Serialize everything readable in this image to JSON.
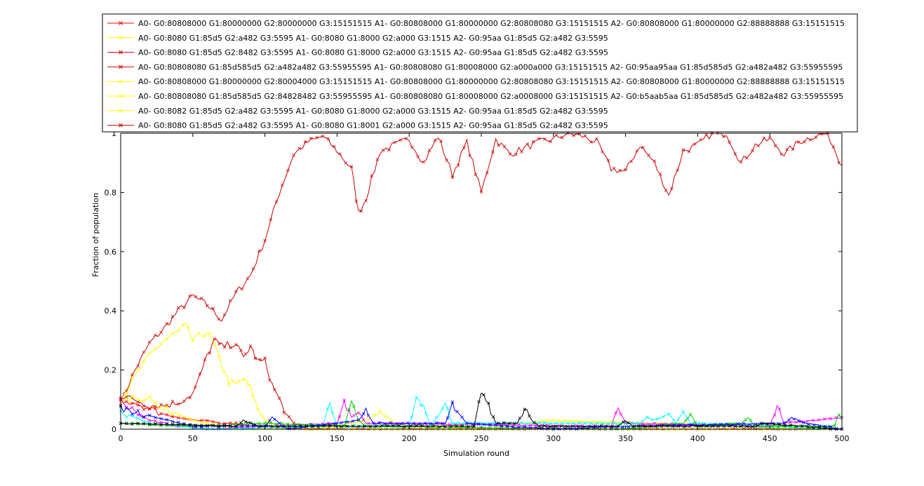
{
  "chart_data": {
    "type": "line",
    "xlabel": "Simulation round",
    "ylabel": "Fraction of population",
    "xlim": [
      0,
      500
    ],
    "ylim": [
      0,
      1
    ],
    "xticks": [
      0,
      50,
      100,
      150,
      200,
      250,
      300,
      350,
      400,
      450,
      500
    ],
    "yticks": [
      0,
      0.2,
      0.4,
      0.6,
      0.8,
      1
    ],
    "xtick_labels": [
      "0",
      "50",
      "100",
      "150",
      "200",
      "250",
      "300",
      "350",
      "400",
      "450",
      "500"
    ],
    "ytick_labels": [
      "0",
      "0.2",
      "0.4",
      "0.6",
      "0.8",
      "1"
    ],
    "grid": false,
    "legend_position": "top",
    "legend": [
      {
        "label": "A0- G0:80808000 G1:80000000 G2:80000000 G3:15151515 A1- G0:80808000 G1:80000000 G2:80808080 G3:15151515 A2- G0:80808000 G1:80000000 G2:88888888 G3:15151515",
        "color": "#ff0000"
      },
      {
        "label": "A0- G0:8080 G1:85d5 G2:a482 G3:5595 A1- G0:8080 G1:8000 G2:a000 G3:1515 A2- G0:95aa G1:85d5 G2:a482 G3:5595",
        "color": "#ffff00"
      },
      {
        "label": "A0- G0:8080 G1:85d5 G2:8482 G3:5595 A1- G0:8080 G1:8000 G2:a000 G3:1515 A2- G0:95aa G1:85d5 G2:a482 G3:5595",
        "color": "#cc0000"
      },
      {
        "label": "A0- G0:80808080 G1:85d585d5 G2:a482a482 G3:55955595 A1- G0:80808080 G1:80008000 G2:a000a000 G3:15151515 A2- G0:95aa95aa G1:85d585d5 G2:a482a482 G3:55955595",
        "color": "#dd0000"
      },
      {
        "label": "A0- G0:80808000 G1:80000000 G2:80004000 G3:15151515 A1- G0:80808000 G1:80000000 G2:80808080 G3:15151515 A2- G0:80808000 G1:80000000 G2:88888888 G3:15151515",
        "color": "#ffff00"
      },
      {
        "label": "A0- G0:80808080 G1:85d585d5 G2:84828482 G3:55955595 A1- G0:80808080 G1:80008000 G2:a0008000 G3:15151515 A2- G0:b5aab5aa G1:85d585d5 G2:a482a482 G3:55955595",
        "color": "#ffff00"
      },
      {
        "label": "A0- G0:8082 G1:85d5 G2:a482 G3:5595 A1- G0:8080 G1:8000 G2:a000 G3:1515 A2- G0:95aa G1:85d5 G2:a482 G3:5595",
        "color": "#ffff00"
      },
      {
        "label": "A0- G0:8080 G1:85d5 G2:a482 G3:5595 A1- G0:8080 G1:8001 G2:a000 G3:1515 A2- G0:95aa G1:85d5 G2:a482 G3:5595",
        "color": "#cc0000"
      }
    ],
    "series": [
      {
        "color": "#cc0000",
        "x": [
          0,
          10,
          20,
          30,
          40,
          50,
          60,
          70,
          80,
          90,
          100,
          110,
          120,
          130,
          140,
          150,
          160,
          165,
          170,
          180,
          190,
          200,
          210,
          220,
          230,
          240,
          250,
          260,
          270,
          280,
          290,
          300,
          310,
          320,
          330,
          340,
          350,
          360,
          370,
          380,
          390,
          400,
          410,
          420,
          430,
          440,
          450,
          460,
          470,
          480,
          490,
          500
        ],
        "values": [
          0.09,
          0.2,
          0.29,
          0.34,
          0.4,
          0.45,
          0.42,
          0.37,
          0.46,
          0.52,
          0.64,
          0.8,
          0.93,
          0.97,
          0.99,
          0.94,
          0.88,
          0.73,
          0.78,
          0.94,
          0.96,
          0.98,
          0.9,
          0.99,
          0.86,
          0.97,
          0.8,
          0.98,
          0.93,
          0.95,
          0.97,
          0.98,
          1.0,
          0.99,
          0.97,
          0.88,
          0.87,
          0.96,
          0.9,
          0.79,
          0.94,
          0.96,
          1.0,
          1.0,
          0.9,
          0.96,
          0.98,
          0.93,
          0.97,
          0.99,
          1.0,
          0.89
        ]
      },
      {
        "color": "#ffff00",
        "x": [
          0,
          10,
          20,
          30,
          40,
          45,
          50,
          60,
          65,
          70,
          75,
          80,
          85,
          90,
          95,
          100,
          105,
          110,
          120,
          130,
          150,
          160,
          170,
          180,
          190,
          200,
          250,
          300,
          500
        ],
        "values": [
          0.1,
          0.18,
          0.25,
          0.3,
          0.33,
          0.35,
          0.3,
          0.33,
          0.28,
          0.22,
          0.16,
          0.15,
          0.17,
          0.14,
          0.07,
          0.03,
          0.02,
          0.01,
          0.0,
          0.0,
          0.01,
          0.02,
          0.03,
          0.06,
          0.02,
          0.01,
          0.0,
          0.03,
          0.0
        ]
      },
      {
        "color": "#cc0000",
        "x": [
          0,
          10,
          20,
          30,
          40,
          50,
          55,
          60,
          65,
          70,
          80,
          85,
          90,
          95,
          100,
          105,
          110,
          115,
          120,
          130,
          150,
          500
        ],
        "values": [
          0.11,
          0.1,
          0.08,
          0.08,
          0.09,
          0.12,
          0.18,
          0.25,
          0.3,
          0.28,
          0.29,
          0.24,
          0.28,
          0.23,
          0.23,
          0.15,
          0.1,
          0.05,
          0.02,
          0.0,
          0.0,
          0.0
        ]
      },
      {
        "color": "#ff0000",
        "x": [
          0,
          10,
          20,
          30,
          40,
          50,
          60,
          70,
          80,
          90,
          100,
          110,
          120,
          500
        ],
        "values": [
          0.1,
          0.09,
          0.07,
          0.05,
          0.04,
          0.03,
          0.03,
          0.02,
          0.02,
          0.01,
          0.01,
          0.01,
          0.0,
          0.0
        ]
      },
      {
        "color": "#ffff00",
        "x": [
          0,
          10,
          20,
          30,
          40,
          50,
          60,
          70,
          80,
          500
        ],
        "values": [
          0.09,
          0.11,
          0.1,
          0.07,
          0.05,
          0.03,
          0.02,
          0.01,
          0.0,
          0.0
        ]
      },
      {
        "color": "#ff00ff",
        "x": [
          0,
          10,
          20,
          30,
          40,
          50,
          60,
          150,
          155,
          160,
          165,
          170,
          340,
          345,
          350,
          450,
          455,
          460,
          500
        ],
        "values": [
          0.09,
          0.06,
          0.03,
          0.02,
          0.01,
          0.01,
          0.0,
          0.02,
          0.09,
          0.04,
          0.06,
          0.02,
          0.01,
          0.08,
          0.02,
          0.01,
          0.08,
          0.02,
          0.04
        ]
      },
      {
        "color": "#00ffff",
        "x": [
          0,
          20,
          40,
          60,
          140,
          145,
          150,
          200,
          205,
          210,
          215,
          225,
          230,
          360,
          365,
          370,
          380,
          385,
          390,
          395,
          500
        ],
        "values": [
          0.06,
          0.02,
          0.01,
          0.0,
          0.01,
          0.08,
          0.01,
          0.01,
          0.1,
          0.08,
          0.01,
          0.08,
          0.02,
          0.02,
          0.04,
          0.03,
          0.05,
          0.02,
          0.06,
          0.02,
          0.0
        ]
      },
      {
        "color": "#00cc00",
        "x": [
          0,
          50,
          100,
          155,
          160,
          165,
          170,
          350,
          390,
          395,
          400,
          430,
          435,
          440,
          495,
          498,
          500
        ],
        "values": [
          0.02,
          0.01,
          0.02,
          0.01,
          0.09,
          0.03,
          0.01,
          0.0,
          0.02,
          0.05,
          0.01,
          0.02,
          0.04,
          0.01,
          0.01,
          0.06,
          0.03
        ]
      },
      {
        "color": "#0000ff",
        "x": [
          0,
          50,
          100,
          105,
          110,
          115,
          165,
          170,
          175,
          225,
          230,
          235,
          240,
          300,
          350,
          460,
          465,
          470,
          475,
          500
        ],
        "values": [
          0.07,
          0.01,
          0.01,
          0.04,
          0.02,
          0.0,
          0.03,
          0.06,
          0.02,
          0.02,
          0.08,
          0.05,
          0.02,
          0.0,
          0.01,
          0.02,
          0.04,
          0.03,
          0.02,
          0.0
        ]
      },
      {
        "color": "#000000",
        "x": [
          0,
          80,
          85,
          90,
          95,
          245,
          250,
          255,
          260,
          275,
          280,
          285,
          290,
          345,
          350,
          355,
          440,
          445,
          500
        ],
        "values": [
          0.02,
          0.01,
          0.03,
          0.02,
          0.01,
          0.01,
          0.12,
          0.08,
          0.02,
          0.02,
          0.07,
          0.03,
          0.01,
          0.01,
          0.03,
          0.01,
          0.01,
          0.02,
          0.0
        ]
      }
    ]
  }
}
